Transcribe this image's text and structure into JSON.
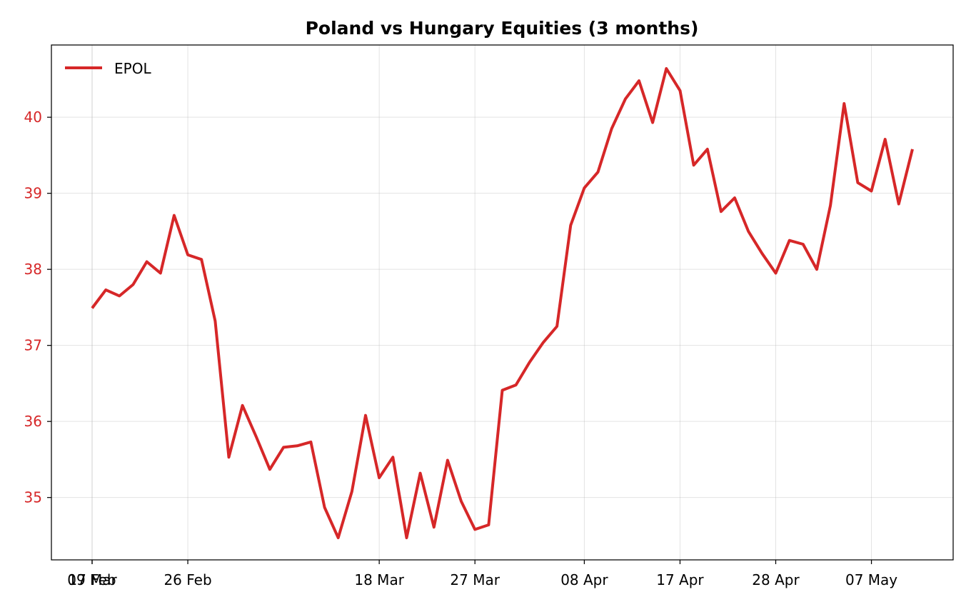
{
  "chart_data": {
    "type": "line",
    "title": "Poland vs Hungary Equities (3 months)",
    "xlabel": "",
    "ylabel": "",
    "x_tick_labels": [
      "17 Feb",
      "26 Feb",
      "09 Mar",
      "18 Mar",
      "27 Mar",
      "08 Apr",
      "17 Apr",
      "28 Apr",
      "07 May"
    ],
    "y_ticks": [
      35,
      36,
      37,
      38,
      39,
      40
    ],
    "ylim": [
      34.18,
      40.95
    ],
    "grid": true,
    "legend_position": "top-left",
    "series": [
      {
        "name": "EPOL",
        "color": "#d62728",
        "x": [
          "2025-02-17",
          "2025-02-18",
          "2025-02-19",
          "2025-02-20",
          "2025-02-21",
          "2025-02-24",
          "2025-02-25",
          "2025-02-26",
          "2025-02-27",
          "2025-02-28",
          "2025-03-03",
          "2025-03-04",
          "2025-03-05",
          "2025-03-06",
          "2025-03-07",
          "2025-03-10",
          "2025-03-11",
          "2025-03-12",
          "2025-03-13",
          "2025-03-14",
          "2025-03-17",
          "2025-03-18",
          "2025-03-19",
          "2025-03-20",
          "2025-03-21",
          "2025-03-24",
          "2025-03-25",
          "2025-03-26",
          "2025-03-27",
          "2025-03-28",
          "2025-03-31",
          "2025-04-01",
          "2025-04-02",
          "2025-04-03",
          "2025-04-04",
          "2025-04-07",
          "2025-04-08",
          "2025-04-09",
          "2025-04-10",
          "2025-04-11",
          "2025-04-14",
          "2025-04-15",
          "2025-04-16",
          "2025-04-17",
          "2025-04-18",
          "2025-04-21",
          "2025-04-22",
          "2025-04-23",
          "2025-04-24",
          "2025-04-25",
          "2025-04-28",
          "2025-04-29",
          "2025-04-30",
          "2025-05-01",
          "2025-05-02",
          "2025-05-05",
          "2025-05-06",
          "2025-05-07",
          "2025-05-08",
          "2025-05-09",
          "2025-05-12",
          "2025-05-13",
          "2025-05-14",
          "2025-05-15"
        ],
        "values": [
          37.49,
          37.73,
          37.65,
          37.8,
          38.1,
          37.95,
          38.71,
          38.19,
          38.13,
          37.32,
          35.53,
          36.21,
          35.8,
          35.37,
          35.66,
          35.68,
          35.73,
          34.87,
          34.47,
          35.08,
          36.08,
          35.26,
          35.53,
          34.47,
          35.32,
          34.61,
          35.49,
          34.95,
          34.58,
          34.64,
          36.41,
          36.48,
          36.78,
          37.04,
          37.25,
          38.58,
          39.07,
          39.28,
          39.85,
          40.24,
          40.48,
          39.93,
          40.64,
          40.35,
          39.37,
          39.58,
          38.76,
          38.94,
          38.5,
          38.21,
          37.95,
          38.38,
          38.33,
          38.0,
          38.84,
          40.18,
          39.14,
          39.03,
          39.71,
          38.86,
          39.58,
          null,
          null,
          null
        ]
      }
    ]
  }
}
